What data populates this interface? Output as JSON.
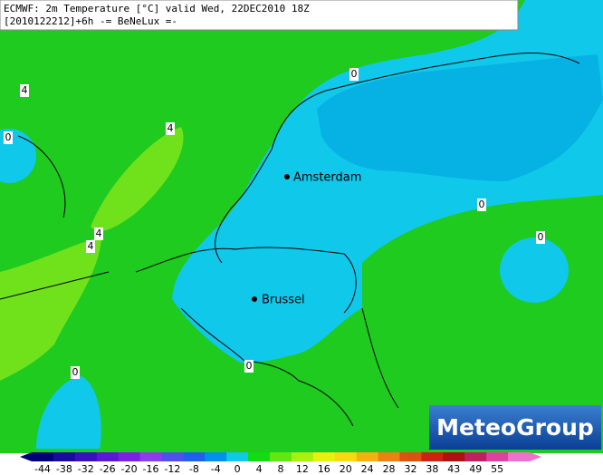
{
  "header": {
    "line1": "ECMWF: 2m Temperature [°C] valid Wed, 22DEC2010 18Z",
    "line2": "[2010122212]+6h -= BeNeLux =-"
  },
  "cities": [
    {
      "name": "Amsterdam"
    },
    {
      "name": "Brussel"
    }
  ],
  "contour_labels": [
    4,
    0,
    4,
    0,
    4,
    4,
    0,
    0,
    0,
    0
  ],
  "colorbar": {
    "ticks": [
      -44,
      -38,
      -32,
      -26,
      -20,
      -16,
      -12,
      -8,
      -4,
      0,
      4,
      8,
      12,
      16,
      20,
      24,
      28,
      32,
      38,
      43,
      49,
      55
    ]
  },
  "logo": "MeteoGroup"
}
